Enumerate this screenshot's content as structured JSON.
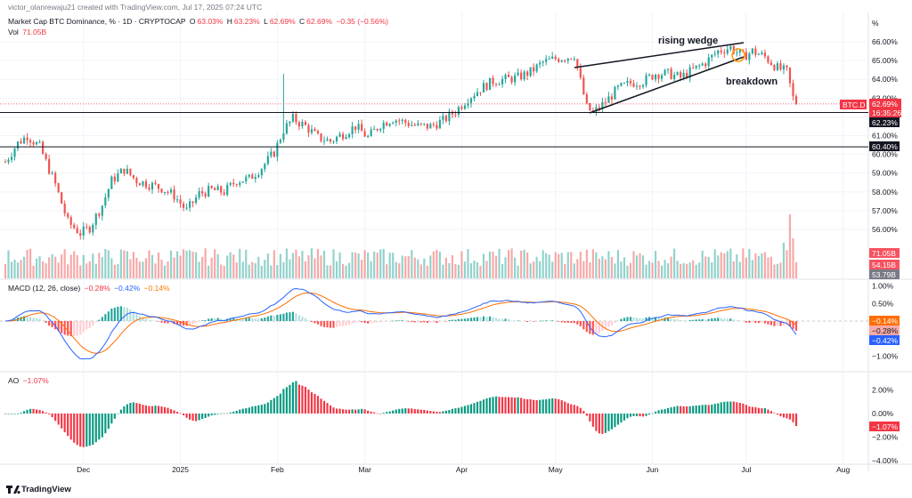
{
  "header": {
    "author_line": "victor_olanrewaju21 created with TradingView.com, Jul 17, 2025 07:24 UTC",
    "symbol": "Market Cap BTC Dominance, % · 1D · CRYPTOCAP",
    "o_label": "O",
    "o_value": "63.03%",
    "h_label": "H",
    "h_value": "63.23%",
    "l_label": "L",
    "l_value": "62.69%",
    "c_label": "C",
    "c_value": "62.69%",
    "change": "−0.35 (−0.56%)",
    "vol_label": "Vol",
    "vol_value": "71.05B",
    "currency": "%"
  },
  "macd_header": {
    "title": "MACD (12, 26, close)",
    "hist": "−0.28%",
    "macd": "−0.42%",
    "signal": "−0.14%"
  },
  "ao_header": {
    "title": "AO",
    "value": "−1.07%"
  },
  "annotations": {
    "rising_wedge": "rising wedge",
    "breakdown": "breakdown"
  },
  "price_tags": {
    "symbol_tag": "BTC.D",
    "last": "62.69%",
    "countdown": "16:35:26",
    "line1": "62.23%",
    "line2": "60.40%",
    "vol1": "71.05B",
    "vol2": "54.15B",
    "vol3": "53.79B",
    "macd_signal": "−0.14%",
    "macd_hist": "−0.28%",
    "macd_line": "−0.42%",
    "ao_last": "−1.07%"
  },
  "footer": {
    "brand": "TradingView"
  },
  "colors": {
    "up": "#26a69a",
    "down": "#ef5350",
    "macd": "#2962ff",
    "signal": "#ff6d00",
    "line": "#131722"
  },
  "chart_data": [
    {
      "type": "candlestick",
      "title": "Market Cap BTC Dominance, % · 1D · CRYPTOCAP",
      "y_ticks": [
        "66.00%",
        "65.00%",
        "64.00%",
        "63.00%",
        "62.00%",
        "61.00%",
        "60.00%",
        "59.00%",
        "58.00%",
        "57.00%",
        "56.00%"
      ],
      "ylim": [
        55.5,
        66.5
      ],
      "x_ticks": [
        "Dec",
        "2025",
        "Feb",
        "Mar",
        "Apr",
        "May",
        "Jun",
        "Jul",
        "Aug"
      ],
      "horizontal_levels": [
        62.23,
        60.4
      ],
      "last_close": 62.69,
      "close_path": [
        [
          "2024-11-06",
          59.6
        ],
        [
          "2024-11-10",
          60.6
        ],
        [
          "2024-11-13",
          61.0
        ],
        [
          "2024-11-17",
          60.4
        ],
        [
          "2024-11-22",
          58.4
        ],
        [
          "2024-11-26",
          56.4
        ],
        [
          "2024-11-30",
          55.8
        ],
        [
          "2024-12-03",
          56.1
        ],
        [
          "2024-12-07",
          57.3
        ],
        [
          "2024-12-10",
          58.6
        ],
        [
          "2024-12-14",
          59.2
        ],
        [
          "2024-12-18",
          58.6
        ],
        [
          "2024-12-22",
          58.4
        ],
        [
          "2024-12-26",
          58.2
        ],
        [
          "2024-12-30",
          57.8
        ],
        [
          "2025-01-03",
          57.0
        ],
        [
          "2025-01-07",
          57.9
        ],
        [
          "2025-01-11",
          58.1
        ],
        [
          "2025-01-15",
          58.0
        ],
        [
          "2025-01-19",
          58.6
        ],
        [
          "2025-01-23",
          58.7
        ],
        [
          "2025-01-27",
          59.3
        ],
        [
          "2025-01-31",
          60.1
        ],
        [
          "2025-02-03",
          61.3
        ],
        [
          "2025-02-06",
          61.9
        ],
        [
          "2025-02-10",
          61.5
        ],
        [
          "2025-02-14",
          60.9
        ],
        [
          "2025-02-18",
          60.7
        ],
        [
          "2025-02-22",
          61.1
        ],
        [
          "2025-02-26",
          61.5
        ],
        [
          "2025-03-02",
          60.9
        ],
        [
          "2025-03-06",
          61.6
        ],
        [
          "2025-03-10",
          61.9
        ],
        [
          "2025-03-14",
          61.7
        ],
        [
          "2025-03-18",
          61.5
        ],
        [
          "2025-03-22",
          61.5
        ],
        [
          "2025-03-26",
          61.8
        ],
        [
          "2025-03-30",
          62.3
        ],
        [
          "2025-04-03",
          63.0
        ],
        [
          "2025-04-07",
          63.5
        ],
        [
          "2025-04-11",
          63.9
        ],
        [
          "2025-04-15",
          64.0
        ],
        [
          "2025-04-19",
          64.1
        ],
        [
          "2025-04-23",
          64.4
        ],
        [
          "2025-04-27",
          64.9
        ],
        [
          "2025-05-01",
          65.1
        ],
        [
          "2025-05-05",
          65.2
        ],
        [
          "2025-05-07",
          65.3
        ],
        [
          "2025-05-09",
          63.9
        ],
        [
          "2025-05-11",
          62.5
        ],
        [
          "2025-05-13",
          62.2
        ],
        [
          "2025-05-17",
          62.8
        ],
        [
          "2025-05-21",
          63.5
        ],
        [
          "2025-05-25",
          63.8
        ],
        [
          "2025-05-29",
          63.9
        ],
        [
          "2025-06-02",
          64.3
        ],
        [
          "2025-06-06",
          64.3
        ],
        [
          "2025-06-10",
          64.1
        ],
        [
          "2025-06-14",
          64.5
        ],
        [
          "2025-06-18",
          64.9
        ],
        [
          "2025-06-22",
          65.5
        ],
        [
          "2025-06-26",
          65.7
        ],
        [
          "2025-06-30",
          65.2
        ],
        [
          "2025-07-03",
          65.5
        ],
        [
          "2025-07-07",
          65.2
        ],
        [
          "2025-07-11",
          64.6
        ],
        [
          "2025-07-14",
          64.4
        ],
        [
          "2025-07-16",
          63.0
        ],
        [
          "2025-07-17",
          62.69
        ]
      ]
    },
    {
      "type": "bar",
      "title": "Vol",
      "values_labels": [
        "71.05B",
        "54.15B",
        "53.79B"
      ]
    },
    {
      "type": "line",
      "title": "MACD (12, 26, close)",
      "y_ticks": [
        "1.00%",
        "0.50%",
        "0.00%",
        "−0.50%",
        "−1.00%"
      ],
      "ylim": [
        -1.2,
        1.1
      ],
      "series": [
        {
          "name": "MACD",
          "last": -0.42
        },
        {
          "name": "Signal",
          "last": -0.14
        },
        {
          "name": "Histogram",
          "last": -0.28
        }
      ]
    },
    {
      "type": "bar",
      "title": "AO",
      "y_ticks": [
        "2.00%",
        "0.00%",
        "−2.00%",
        "−4.00%"
      ],
      "ylim": [
        -4.0,
        2.8
      ],
      "last": -1.07
    }
  ]
}
